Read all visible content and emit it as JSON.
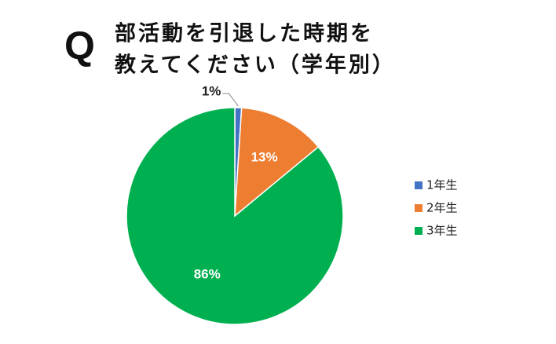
{
  "chart_data": {
    "type": "pie",
    "title_mark": "Q",
    "title": [
      "部活動を引退した時期を",
      "教えてください（学年別）"
    ],
    "categories": [
      "1年生",
      "2年生",
      "3年生"
    ],
    "values": [
      1,
      13,
      86
    ],
    "value_labels": [
      "1%",
      "13%",
      "86%"
    ],
    "colors": [
      "#4472c4",
      "#ed7d31",
      "#00b050"
    ],
    "legend": "right"
  }
}
